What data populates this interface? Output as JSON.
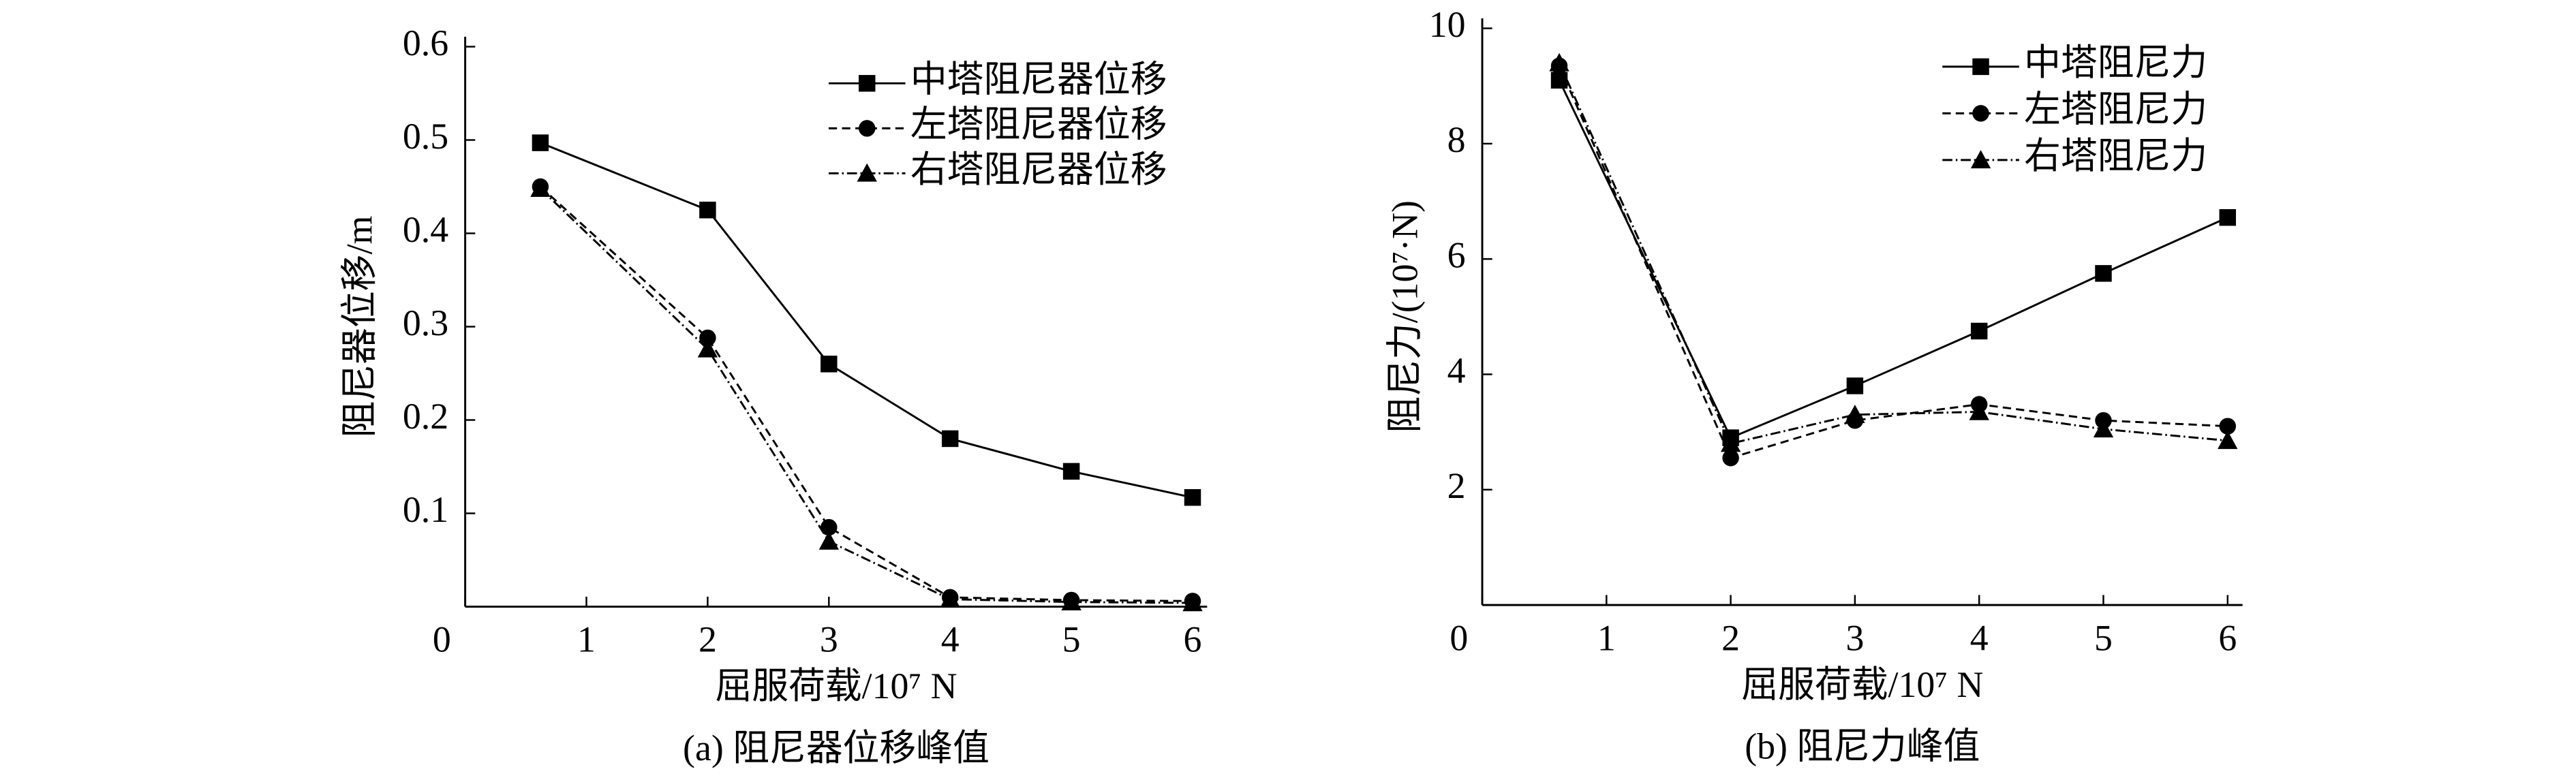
{
  "chart_data": [
    {
      "type": "line",
      "x_label": "屈服荷载/10⁷ N",
      "y_label": "阻尼器位移/m",
      "caption": "(a) 阻尼器位移峰值",
      "x": [
        0.62,
        2,
        3,
        4,
        5,
        6
      ],
      "series": [
        {
          "name": "中塔阻尼器位移",
          "color": "#000000",
          "marker": "square",
          "linestyle": "solid",
          "values": [
            0.497,
            0.425,
            0.26,
            0.18,
            0.145,
            0.117
          ]
        },
        {
          "name": "左塔阻尼器位移",
          "color": "#000000",
          "marker": "circle",
          "linestyle": "dashed",
          "values": [
            0.45,
            0.288,
            0.085,
            0.01,
            0.007,
            0.006
          ]
        },
        {
          "name": "右塔阻尼器位移",
          "color": "#000000",
          "marker": "triangle",
          "linestyle": "dashdot",
          "values": [
            0.448,
            0.276,
            0.07,
            0.008,
            0.005,
            0.004
          ]
        }
      ],
      "xlim": [
        0,
        6.12
      ],
      "ylim": [
        0,
        0.6
      ],
      "xticks": [
        0,
        1,
        2,
        3,
        4,
        5,
        6
      ],
      "yticks": [
        0.1,
        0.2,
        0.3,
        0.4,
        0.5,
        0.6
      ],
      "legend": "upper right"
    },
    {
      "type": "line",
      "x_label": "屈服荷载/10⁷ N",
      "y_label": "阻尼力/(10⁷·N)",
      "caption": "(b) 阻尼力峰值",
      "x": [
        0.62,
        2,
        3,
        4,
        5,
        6
      ],
      "series": [
        {
          "name": "中塔阻尼力",
          "color": "#000000",
          "marker": "square",
          "linestyle": "solid",
          "values": [
            9.1,
            2.9,
            3.8,
            4.75,
            5.75,
            6.72
          ]
        },
        {
          "name": "左塔阻尼力",
          "color": "#000000",
          "marker": "circle",
          "linestyle": "dashed",
          "values": [
            9.35,
            2.55,
            3.2,
            3.48,
            3.2,
            3.1
          ]
        },
        {
          "name": "右塔阻尼力",
          "color": "#000000",
          "marker": "triangle",
          "linestyle": "dashdot",
          "values": [
            9.4,
            2.8,
            3.3,
            3.35,
            3.05,
            2.85
          ]
        }
      ],
      "xlim": [
        0,
        6.12
      ],
      "ylim": [
        0,
        10
      ],
      "xticks": [
        0,
        1,
        2,
        3,
        4,
        5,
        6
      ],
      "yticks": [
        2,
        4,
        6,
        8,
        10
      ],
      "legend": "upper right"
    }
  ]
}
